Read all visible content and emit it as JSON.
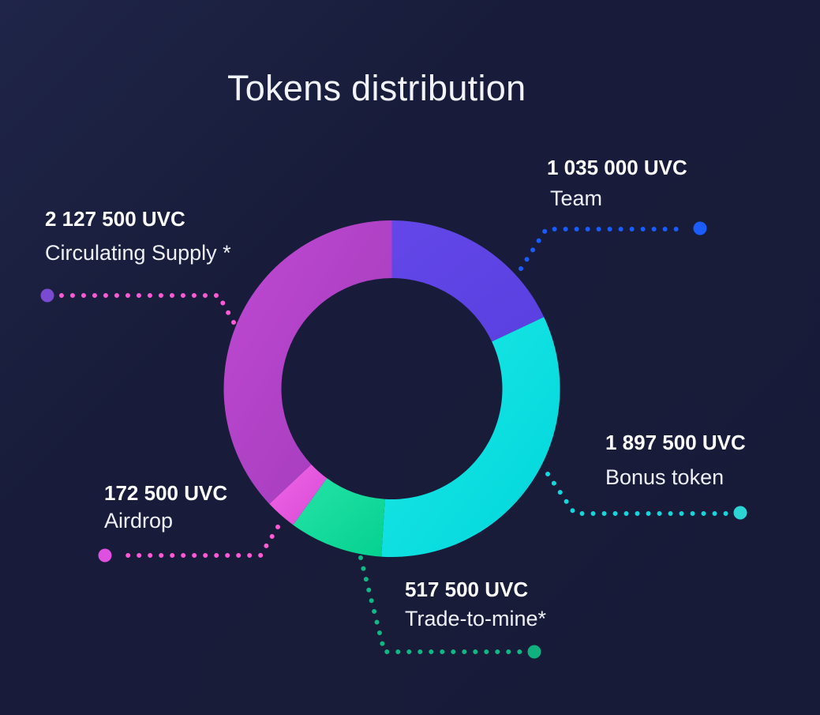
{
  "chart_data": {
    "type": "pie",
    "variant": "donut",
    "title": "Tokens distribution",
    "start": "top",
    "direction": "clockwise",
    "slices": [
      {
        "key": "team",
        "name": "Team",
        "value": 1035000,
        "value_label": "1 035 000 UVC",
        "color": "#5a40e0",
        "color2": "#6347e8",
        "dot_color": "#1a5cff",
        "line_color": "#1a5cff"
      },
      {
        "key": "bonus",
        "name": "Bonus token",
        "value": 1897500,
        "value_label": "1 897 500 UVC",
        "color": "#00d6db",
        "color2": "#1ee8e6",
        "dot_color": "#2dd4d4",
        "line_color": "#10d8dc"
      },
      {
        "key": "trade",
        "name": "Trade-to-mine*",
        "value": 517500,
        "value_label": "517 500 UVC",
        "color": "#05d18f",
        "color2": "#25e3a6",
        "dot_color": "#10b07f",
        "line_color": "#10b886"
      },
      {
        "key": "airdrop",
        "name": "Airdrop",
        "value": 172500,
        "value_label": "172 500 UVC",
        "color": "#d84ad4",
        "color2": "#f066e8",
        "dot_color": "#e050e0",
        "line_color": "#ff5ad6"
      },
      {
        "key": "circ",
        "name": "Circulating Supply *",
        "value": 2127500,
        "value_label": "2 127 500 UVC",
        "color": "#a03ab8",
        "color2": "#c04ad4",
        "dot_color": "#7a4bd0",
        "line_color": "#ff5ad6"
      }
    ],
    "background": "#181c3a"
  }
}
